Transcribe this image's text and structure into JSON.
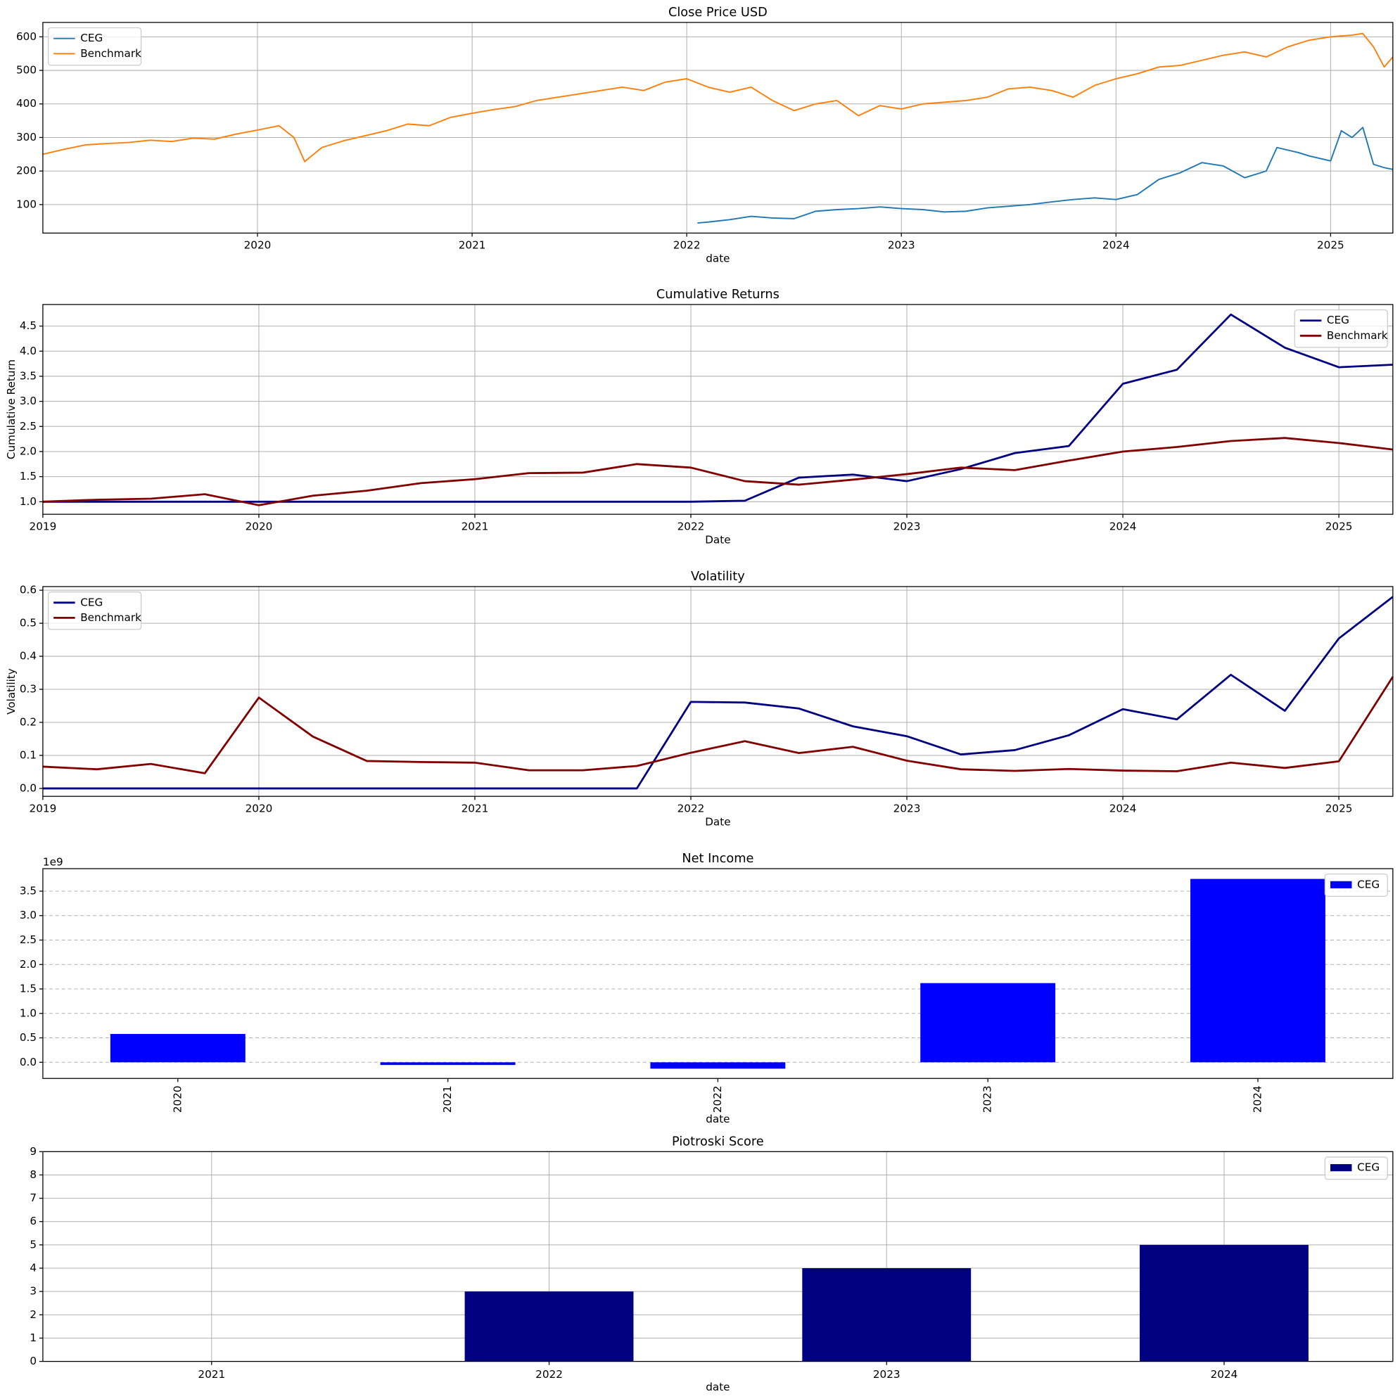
{
  "chart_data": [
    {
      "type": "line",
      "title": "Close Price USD",
      "xlabel": "date",
      "xlim": [
        2019.0,
        2025.29
      ],
      "xticks": [
        2020,
        2021,
        2022,
        2023,
        2024,
        2025
      ],
      "ylim": [
        15,
        643
      ],
      "yticks": [
        100,
        200,
        300,
        400,
        500,
        600
      ],
      "grid": "both",
      "legend": "upper left",
      "line_width": 1.5,
      "series": [
        {
          "name": "CEG",
          "color": "#1f77b4",
          "x": [
            2022.05,
            2022.1,
            2022.2,
            2022.3,
            2022.4,
            2022.5,
            2022.6,
            2022.7,
            2022.8,
            2022.9,
            2023.0,
            2023.1,
            2023.2,
            2023.3,
            2023.4,
            2023.5,
            2023.6,
            2023.7,
            2023.8,
            2023.9,
            2024.0,
            2024.1,
            2024.2,
            2024.3,
            2024.4,
            2024.5,
            2024.6,
            2024.7,
            2024.75,
            2024.85,
            2024.9,
            2025.0,
            2025.05,
            2025.1,
            2025.15,
            2025.2,
            2025.25,
            2025.29
          ],
          "values": [
            45,
            48,
            55,
            65,
            60,
            58,
            80,
            85,
            88,
            93,
            88,
            85,
            78,
            80,
            90,
            95,
            100,
            108,
            115,
            120,
            115,
            130,
            175,
            195,
            225,
            215,
            180,
            200,
            270,
            255,
            245,
            230,
            320,
            300,
            330,
            220,
            210,
            205
          ]
        },
        {
          "name": "Benchmark",
          "color": "#ff7f0e",
          "x": [
            2019.0,
            2019.1,
            2019.2,
            2019.3,
            2019.4,
            2019.5,
            2019.6,
            2019.7,
            2019.8,
            2019.9,
            2020.0,
            2020.1,
            2020.17,
            2020.22,
            2020.3,
            2020.4,
            2020.5,
            2020.6,
            2020.7,
            2020.8,
            2020.9,
            2021.0,
            2021.1,
            2021.2,
            2021.3,
            2021.4,
            2021.5,
            2021.6,
            2021.7,
            2021.8,
            2021.9,
            2022.0,
            2022.1,
            2022.2,
            2022.3,
            2022.4,
            2022.5,
            2022.6,
            2022.7,
            2022.8,
            2022.9,
            2023.0,
            2023.1,
            2023.2,
            2023.3,
            2023.4,
            2023.5,
            2023.6,
            2023.7,
            2023.8,
            2023.9,
            2024.0,
            2024.1,
            2024.2,
            2024.3,
            2024.4,
            2024.5,
            2024.6,
            2024.7,
            2024.8,
            2024.9,
            2025.0,
            2025.1,
            2025.15,
            2025.2,
            2025.25,
            2025.29
          ],
          "values": [
            250,
            265,
            278,
            282,
            285,
            292,
            288,
            298,
            295,
            310,
            322,
            335,
            300,
            228,
            270,
            290,
            305,
            320,
            340,
            335,
            360,
            372,
            383,
            392,
            410,
            420,
            430,
            440,
            450,
            440,
            465,
            475,
            450,
            435,
            450,
            410,
            380,
            400,
            410,
            365,
            395,
            385,
            400,
            405,
            410,
            420,
            445,
            450,
            440,
            420,
            455,
            475,
            490,
            510,
            515,
            530,
            545,
            555,
            540,
            570,
            590,
            600,
            605,
            610,
            570,
            510,
            540
          ]
        }
      ]
    },
    {
      "type": "line",
      "title": "Cumulative Returns",
      "xlabel": "Date",
      "ylabel": "Cumulative Return",
      "xlim": [
        2019.0,
        2025.25
      ],
      "xticks": [
        2019,
        2020,
        2021,
        2022,
        2023,
        2024,
        2025
      ],
      "ylim": [
        0.75,
        4.93
      ],
      "yticks": [
        {
          "value": 1,
          "label": "1.0"
        },
        1.5,
        {
          "value": 2,
          "label": "2.0"
        },
        2.5,
        {
          "value": 3,
          "label": "3.0"
        },
        3.5,
        {
          "value": 4,
          "label": "4.0"
        },
        4.5
      ],
      "grid": "both",
      "legend": "upper right",
      "line_width": 2.2,
      "x": [
        2019.0,
        2019.25,
        2019.5,
        2019.75,
        2020.0,
        2020.25,
        2020.5,
        2020.75,
        2021.0,
        2021.25,
        2021.5,
        2021.75,
        2022.0,
        2022.25,
        2022.5,
        2022.75,
        2023.0,
        2023.25,
        2023.5,
        2023.75,
        2024.0,
        2024.25,
        2024.5,
        2024.75,
        2025.0,
        2025.25
      ],
      "series": [
        {
          "name": "CEG",
          "color": "#000080",
          "values": [
            1,
            1,
            1,
            1,
            1,
            1,
            1,
            1,
            1,
            1,
            1,
            1,
            1,
            1.02,
            1.48,
            1.54,
            1.41,
            1.65,
            1.97,
            2.11,
            3.35,
            3.63,
            4.73,
            4.07,
            3.68,
            3.73
          ]
        },
        {
          "name": "Benchmark",
          "color": "#800000",
          "values": [
            1,
            1.04,
            1.06,
            1.15,
            0.93,
            1.12,
            1.22,
            1.37,
            1.45,
            1.57,
            1.58,
            1.75,
            1.68,
            1.41,
            1.34,
            1.44,
            1.55,
            1.68,
            1.63,
            1.82,
            2.0,
            2.09,
            2.21,
            2.27,
            2.17,
            2.04
          ]
        }
      ]
    },
    {
      "type": "line",
      "title": "Volatility",
      "xlabel": "Date",
      "ylabel": "Volatility",
      "xlim": [
        2019.0,
        2025.25
      ],
      "xticks": [
        2019,
        2020,
        2021,
        2022,
        2023,
        2024,
        2025
      ],
      "ylim": [
        -0.024,
        0.611
      ],
      "yticks": [
        {
          "value": 0,
          "label": "0.0"
        },
        0.1,
        0.2,
        0.3,
        0.4,
        0.5,
        0.6
      ],
      "grid": "both",
      "legend": "upper left",
      "line_width": 2.2,
      "x": [
        2019.0,
        2019.25,
        2019.5,
        2019.75,
        2020.0,
        2020.25,
        2020.5,
        2020.75,
        2021.0,
        2021.25,
        2021.5,
        2021.75,
        2022.0,
        2022.25,
        2022.5,
        2022.75,
        2023.0,
        2023.25,
        2023.5,
        2023.75,
        2024.0,
        2024.25,
        2024.5,
        2024.75,
        2025.0,
        2025.25
      ],
      "series": [
        {
          "name": "CEG",
          "color": "#000080",
          "values": [
            0,
            0,
            0,
            0,
            0,
            0,
            0,
            0,
            0,
            0,
            0,
            0,
            0.262,
            0.26,
            0.242,
            0.188,
            0.158,
            0.103,
            0.116,
            0.161,
            0.24,
            0.209,
            0.344,
            0.235,
            0.454,
            0.58
          ]
        },
        {
          "name": "Benchmark",
          "color": "#800000",
          "values": [
            0.066,
            0.058,
            0.074,
            0.046,
            0.275,
            0.157,
            0.083,
            0.08,
            0.078,
            0.055,
            0.055,
            0.068,
            0.108,
            0.143,
            0.107,
            0.126,
            0.084,
            0.058,
            0.053,
            0.059,
            0.054,
            0.052,
            0.078,
            0.062,
            0.082,
            0.338
          ]
        }
      ]
    },
    {
      "type": "bar",
      "title": "Net Income",
      "xlabel": "date",
      "offset_label": "1e9",
      "categories": [
        "2020",
        "2021",
        "2022",
        "2023",
        "2024"
      ],
      "ylim": [
        -330000000,
        3960000000
      ],
      "yticks": [
        {
          "value": 0,
          "label": "0.0"
        },
        {
          "value": 500000000,
          "label": "0.5"
        },
        {
          "value": 1000000000,
          "label": "1.0"
        },
        {
          "value": 1500000000,
          "label": "1.5"
        },
        {
          "value": 2000000000,
          "label": "2.0"
        },
        {
          "value": 2500000000,
          "label": "2.5"
        },
        {
          "value": 3000000000,
          "label": "3.0"
        },
        {
          "value": 3500000000,
          "label": "3.5"
        }
      ],
      "grid": "y",
      "grid_style": "dashed",
      "legend": "upper right",
      "xtick_rotation": 90,
      "series": [
        {
          "name": "CEG",
          "color": "#0000ff",
          "values": [
            580000000,
            -55000000,
            -130000000,
            1620000000,
            3750000000
          ]
        }
      ]
    },
    {
      "type": "bar",
      "title": "Piotroski Score",
      "xlabel": "date",
      "categories": [
        "2021",
        "2022",
        "2023",
        "2024"
      ],
      "ylim": [
        0,
        9
      ],
      "yticks": [
        0,
        1,
        2,
        3,
        4,
        5,
        6,
        7,
        8,
        9
      ],
      "grid": "both",
      "legend": "upper right",
      "series": [
        {
          "name": "CEG",
          "color": "#000080",
          "values": [
            0,
            3,
            4,
            5
          ]
        }
      ]
    }
  ]
}
